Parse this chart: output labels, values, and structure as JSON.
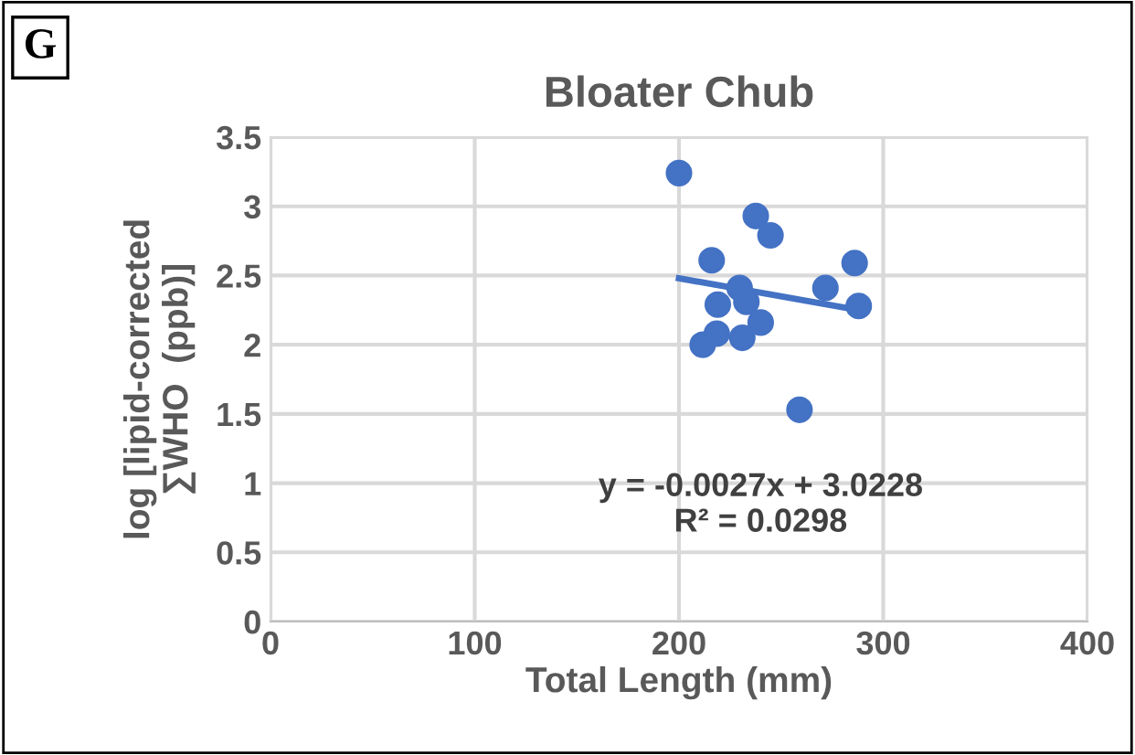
{
  "chart_data": {
    "type": "scatter",
    "title": "Bloater Chub",
    "xlabel": "Total Length (mm)",
    "ylabel": "log [lipid-corrected\n∑WHO  (ppb)]",
    "annotations": [
      "G",
      "y = -0.0027x + 3.0228\nR² = 0.0298"
    ],
    "series": [
      {
        "marker": "circle",
        "color": "#4472c4",
        "x": [
          200,
          237.6,
          244.8,
          216,
          286,
          229.7,
          271.7,
          219,
          233,
          288,
          240,
          218.5,
          211.6,
          231,
          259
        ],
        "values": [
          3.24,
          2.93,
          2.79,
          2.61,
          2.59,
          2.41,
          2.41,
          2.29,
          2.31,
          2.28,
          2.16,
          2.08,
          2.0,
          2.05,
          1.53
        ]
      },
      {
        "type": "line",
        "color": "#4472c4",
        "x": [
          200,
          288
        ],
        "values": [
          2.48,
          2.25
        ]
      }
    ],
    "xlim": [
      0,
      400
    ],
    "xticks": [
      0,
      100,
      200,
      300,
      400
    ],
    "ylim": [
      0,
      3.5
    ],
    "yticks": [
      0,
      0.5,
      1,
      1.5,
      2,
      2.5,
      3,
      3.5
    ],
    "grid": true
  }
}
